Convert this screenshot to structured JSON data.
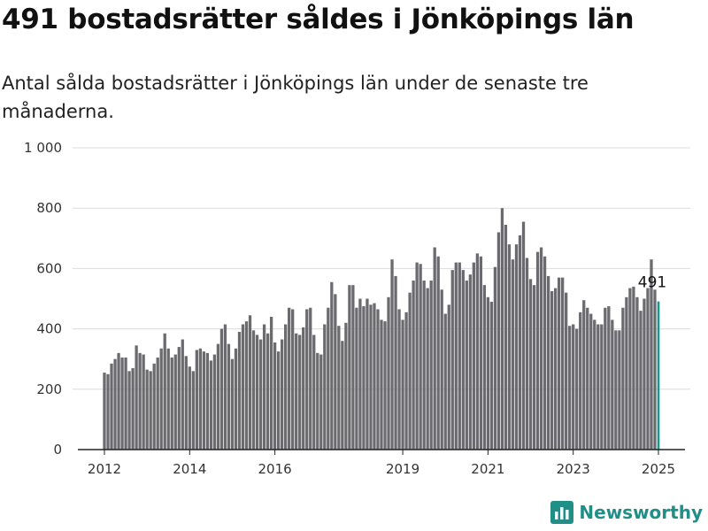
{
  "title": "491 bostadsrätter såldes i Jönköpings län",
  "subtitle": "Antal sålda bostadsrätter i Jönköpings län under de senaste tre månaderna.",
  "brand": {
    "name": "Newsworthy",
    "icon": "bar-chart-logo-icon",
    "color": "#1f8f87"
  },
  "chart_data": {
    "type": "bar",
    "ylim": [
      0,
      1000
    ],
    "yticks": [
      0,
      200,
      400,
      600,
      800,
      1000
    ],
    "ytick_labels": [
      "0",
      "200",
      "400",
      "600",
      "800",
      "1 000"
    ],
    "xticks": [
      {
        "label": "2012",
        "index": 0
      },
      {
        "label": "2014",
        "index": 24
      },
      {
        "label": "2016",
        "index": 48
      },
      {
        "label": "2019",
        "index": 84
      },
      {
        "label": "2021",
        "index": 108
      },
      {
        "label": "2023",
        "index": 132
      },
      {
        "label": "2025",
        "index": 156
      }
    ],
    "grid": true,
    "bar_color": "#6b6a6f",
    "highlight_color": "#1a958c",
    "highlight_label": "491",
    "values": [
      255,
      250,
      285,
      300,
      320,
      305,
      305,
      260,
      270,
      345,
      320,
      315,
      265,
      260,
      285,
      305,
      335,
      385,
      335,
      305,
      315,
      340,
      365,
      310,
      275,
      260,
      330,
      335,
      325,
      320,
      295,
      315,
      350,
      400,
      415,
      350,
      300,
      335,
      390,
      415,
      425,
      445,
      395,
      380,
      365,
      415,
      385,
      440,
      355,
      325,
      365,
      415,
      470,
      465,
      385,
      380,
      405,
      465,
      470,
      380,
      320,
      315,
      415,
      470,
      555,
      515,
      410,
      360,
      420,
      545,
      545,
      470,
      500,
      475,
      500,
      480,
      485,
      465,
      430,
      425,
      505,
      630,
      575,
      465,
      430,
      455,
      520,
      560,
      620,
      615,
      560,
      535,
      560,
      670,
      640,
      530,
      450,
      480,
      595,
      620,
      620,
      595,
      560,
      580,
      620,
      650,
      640,
      545,
      505,
      490,
      605,
      720,
      800,
      745,
      680,
      630,
      680,
      710,
      755,
      635,
      565,
      545,
      655,
      670,
      640,
      575,
      525,
      535,
      570,
      570,
      520,
      410,
      415,
      400,
      455,
      495,
      470,
      450,
      430,
      415,
      415,
      470,
      475,
      430,
      395,
      395,
      470,
      505,
      535,
      540,
      505,
      460,
      500,
      535,
      630,
      530,
      491
    ]
  }
}
